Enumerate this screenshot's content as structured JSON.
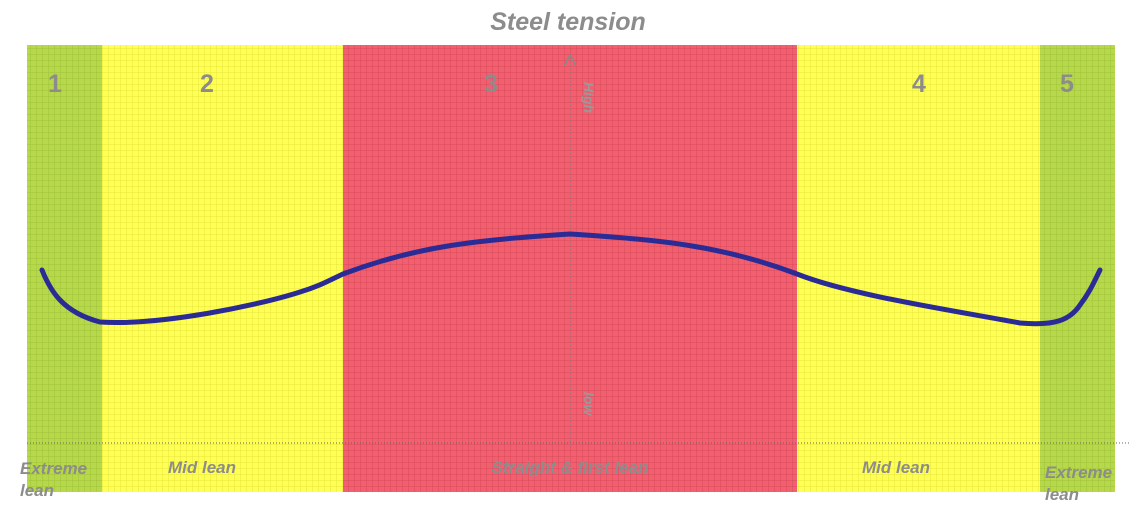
{
  "title": "Steel tension",
  "axis": {
    "high": "High",
    "low": "low"
  },
  "zones": [
    {
      "number": "1",
      "label": "Extreme lean"
    },
    {
      "number": "2",
      "label": "Mid lean"
    },
    {
      "number": "3",
      "label": "Straight & first lean"
    },
    {
      "number": "4",
      "label": "Mid lean"
    },
    {
      "number": "5",
      "label": "Extreme lean"
    }
  ]
}
